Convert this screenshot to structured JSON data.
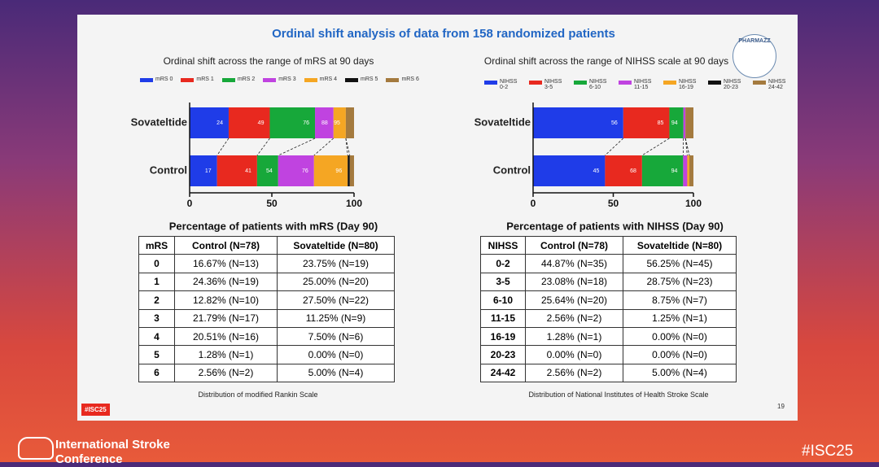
{
  "slide": {
    "title": "Ordinal shift analysis of data from 158 randomized patients",
    "logo": "PHARMAZZ",
    "page_number": "19",
    "tag": "#ISC25"
  },
  "chart_data": [
    {
      "type": "bar",
      "orientation": "horizontal",
      "stacked": true,
      "title": "Ordinal shift across the range of mRS at 90 days",
      "xlabel": "Percentage of patients with mRS (Day 90)",
      "categories": [
        "Sovateltide",
        "Control"
      ],
      "series": [
        {
          "name": "mRS 0",
          "color": "#1f3ce8",
          "values": [
            23.75,
            16.67
          ]
        },
        {
          "name": "mRS 1",
          "color": "#e8291f",
          "values": [
            25.0,
            24.36
          ]
        },
        {
          "name": "mRS 2",
          "color": "#17a83a",
          "values": [
            27.5,
            12.82
          ]
        },
        {
          "name": "mRS 3",
          "color": "#c043e0",
          "values": [
            11.25,
            21.79
          ]
        },
        {
          "name": "mRS 4",
          "color": "#f5a623",
          "values": [
            7.5,
            20.51
          ]
        },
        {
          "name": "mRS 5",
          "color": "#111111",
          "values": [
            0,
            1.28
          ]
        },
        {
          "name": "mRS 6",
          "color": "#a47a3e",
          "values": [
            5.0,
            2.56
          ]
        }
      ],
      "boundary_labels": [
        [
          "24",
          "49",
          "76",
          "88",
          "95"
        ],
        [
          "17",
          "41",
          "54",
          "76",
          "96"
        ]
      ],
      "xlim": [
        0,
        100
      ],
      "xticks": [
        0,
        50,
        100
      ]
    },
    {
      "type": "bar",
      "orientation": "horizontal",
      "stacked": true,
      "title": "Ordinal shift across the range of NIHSS scale at 90 days",
      "xlabel": "Percentage of patients with NIHSS (Day 90)",
      "categories": [
        "Sovateltide",
        "Control"
      ],
      "series": [
        {
          "name": "NIHSS 0-2",
          "color": "#1f3ce8",
          "values": [
            56.25,
            44.87
          ]
        },
        {
          "name": "NIHSS 3-5",
          "color": "#e8291f",
          "values": [
            28.75,
            23.08
          ]
        },
        {
          "name": "NIHSS 6-10",
          "color": "#17a83a",
          "values": [
            8.75,
            25.64
          ]
        },
        {
          "name": "NIHSS 11-15",
          "color": "#c043e0",
          "values": [
            1.25,
            2.56
          ]
        },
        {
          "name": "NIHSS 16-19",
          "color": "#f5a623",
          "values": [
            0,
            1.28
          ]
        },
        {
          "name": "NIHSS 20-23",
          "color": "#111111",
          "values": [
            0,
            0
          ]
        },
        {
          "name": "NIHSS 24-42",
          "color": "#a47a3e",
          "values": [
            5.0,
            2.56
          ]
        }
      ],
      "boundary_labels": [
        [
          "56",
          "85",
          "94"
        ],
        [
          "45",
          "68",
          "94"
        ]
      ],
      "xlim": [
        0,
        100
      ],
      "xticks": [
        0,
        50,
        100
      ]
    }
  ],
  "tables": [
    {
      "header": [
        "mRS",
        "Control (N=78)",
        "Sovateltide (N=80)"
      ],
      "rows": [
        [
          "0",
          "16.67% (N=13)",
          "23.75% (N=19)"
        ],
        [
          "1",
          "24.36% (N=19)",
          "25.00% (N=20)"
        ],
        [
          "2",
          "12.82% (N=10)",
          "27.50% (N=22)"
        ],
        [
          "3",
          "21.79% (N=17)",
          "11.25% (N=9)"
        ],
        [
          "4",
          "20.51% (N=16)",
          "7.50% (N=6)"
        ],
        [
          "5",
          "1.28% (N=1)",
          "0.00% (N=0)"
        ],
        [
          "6",
          "2.56% (N=2)",
          "5.00% (N=4)"
        ]
      ],
      "caption": "Distribution of modified Rankin Scale"
    },
    {
      "header": [
        "NIHSS",
        "Control (N=78)",
        "Sovateltide (N=80)"
      ],
      "rows": [
        [
          "0-2",
          "44.87% (N=35)",
          "56.25% (N=45)"
        ],
        [
          "3-5",
          "23.08% (N=18)",
          "28.75% (N=23)"
        ],
        [
          "6-10",
          "25.64% (N=20)",
          "8.75% (N=7)"
        ],
        [
          "11-15",
          "2.56% (N=2)",
          "1.25% (N=1)"
        ],
        [
          "16-19",
          "1.28% (N=1)",
          "0.00% (N=0)"
        ],
        [
          "20-23",
          "0.00% (N=0)",
          "0.00% (N=0)"
        ],
        [
          "24-42",
          "2.56% (N=2)",
          "5.00% (N=4)"
        ]
      ],
      "caption": "Distribution of National Institutes of Health Stroke Scale"
    }
  ],
  "footer": {
    "conference": "International Stroke Conference",
    "hashtag": "#ISC25"
  }
}
